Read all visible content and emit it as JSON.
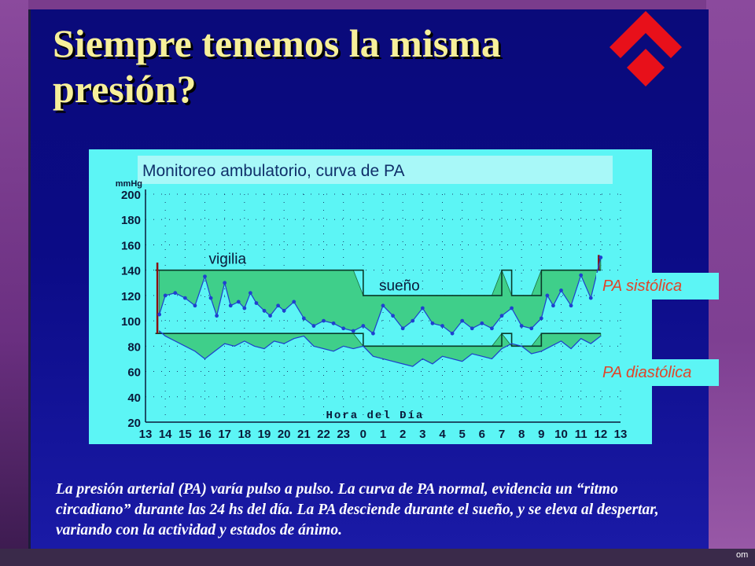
{
  "slide": {
    "title": "Siempre tenemos la misma presión?",
    "body": "La presión arterial (PA) varía pulso a pulso. La curva de PA normal, evidencia un “ritmo circadiano” durante las 24 hs del día. La PA desciende durante el sueño, y se eleva al despertar, variando con la actividad y estados de ánimo.",
    "corner_text": "om",
    "colors": {
      "slide_bg": "#0b0b86",
      "title": "#f7f09a",
      "chart_bg": "#5cf5f5",
      "band": "#3fcf8a",
      "series": "#2040d0",
      "tag_text": "#e0452a",
      "logo": "#e8101a"
    },
    "logo_icon": "red-diamond-chevron-logo"
  },
  "chart_data": {
    "type": "line",
    "title": "Monitoreo ambulatorio, curva de PA",
    "ylabel": "mmHg",
    "xlabel": "Hora del Día",
    "ylim": [
      20,
      200
    ],
    "yticks": [
      20,
      40,
      60,
      80,
      100,
      120,
      140,
      160,
      180,
      200
    ],
    "xticks": [
      "13",
      "14",
      "15",
      "16",
      "17",
      "18",
      "19",
      "20",
      "21",
      "22",
      "23",
      "0",
      "1",
      "2",
      "3",
      "4",
      "5",
      "6",
      "7",
      "8",
      "9",
      "10",
      "11",
      "12",
      "13"
    ],
    "annotations": {
      "wake": "vigilia",
      "sleep": "sueño"
    },
    "labels": {
      "systolic": "PA sistólica",
      "diastolic": "PA diastólica"
    },
    "grid": true,
    "limits": {
      "systolic": [
        [
          13.5,
          140
        ],
        [
          24,
          140
        ],
        [
          24,
          120
        ],
        [
          31,
          120
        ],
        [
          31,
          140
        ],
        [
          31.5,
          140
        ],
        [
          31.5,
          120
        ],
        [
          33,
          120
        ],
        [
          33,
          140
        ],
        [
          36,
          140
        ]
      ],
      "diastolic": [
        [
          13.5,
          90
        ],
        [
          24,
          90
        ],
        [
          24,
          80
        ],
        [
          31,
          80
        ],
        [
          31,
          90
        ],
        [
          31.5,
          90
        ],
        [
          31.5,
          80
        ],
        [
          33,
          80
        ],
        [
          33,
          90
        ],
        [
          36,
          90
        ]
      ]
    },
    "series": [
      {
        "values": [
          [
            13.7,
            105
          ],
          [
            14,
            120
          ],
          [
            14.5,
            122
          ],
          [
            15,
            118
          ],
          [
            15.5,
            112
          ],
          [
            16,
            135
          ],
          [
            16.3,
            118
          ],
          [
            16.6,
            104
          ],
          [
            17,
            130
          ],
          [
            17.3,
            112
          ],
          [
            17.7,
            115
          ],
          [
            18,
            110
          ],
          [
            18.3,
            122
          ],
          [
            18.6,
            114
          ],
          [
            19,
            108
          ],
          [
            19.3,
            104
          ],
          [
            19.7,
            112
          ],
          [
            20,
            108
          ],
          [
            20.5,
            115
          ],
          [
            21,
            102
          ],
          [
            21.5,
            96
          ],
          [
            22,
            100
          ],
          [
            22.5,
            98
          ],
          [
            23,
            94
          ],
          [
            23.5,
            92
          ],
          [
            24,
            96
          ],
          [
            24.5,
            90
          ],
          [
            25,
            112
          ],
          [
            25.5,
            104
          ],
          [
            26,
            94
          ],
          [
            26.5,
            100
          ],
          [
            27,
            110
          ],
          [
            27.5,
            98
          ],
          [
            28,
            96
          ],
          [
            28.5,
            90
          ],
          [
            29,
            100
          ],
          [
            29.5,
            94
          ],
          [
            30,
            98
          ],
          [
            30.5,
            94
          ],
          [
            31,
            104
          ],
          [
            31.5,
            110
          ],
          [
            32,
            96
          ],
          [
            32.5,
            94
          ],
          [
            33,
            102
          ],
          [
            33.3,
            120
          ],
          [
            33.6,
            112
          ],
          [
            34,
            124
          ],
          [
            34.5,
            112
          ],
          [
            35,
            136
          ],
          [
            35.5,
            118
          ],
          [
            36,
            150
          ]
        ]
      },
      {
        "values": [
          [
            13.7,
            92
          ],
          [
            14,
            88
          ],
          [
            14.5,
            84
          ],
          [
            15,
            80
          ],
          [
            15.5,
            76
          ],
          [
            16,
            70
          ],
          [
            16.5,
            76
          ],
          [
            17,
            82
          ],
          [
            17.5,
            80
          ],
          [
            18,
            84
          ],
          [
            18.5,
            80
          ],
          [
            19,
            78
          ],
          [
            19.5,
            84
          ],
          [
            20,
            82
          ],
          [
            20.5,
            86
          ],
          [
            21,
            88
          ],
          [
            21.5,
            80
          ],
          [
            22,
            78
          ],
          [
            22.5,
            76
          ],
          [
            23,
            80
          ],
          [
            23.5,
            78
          ],
          [
            24,
            80
          ],
          [
            24.5,
            72
          ],
          [
            25,
            70
          ],
          [
            25.5,
            68
          ],
          [
            26,
            66
          ],
          [
            26.5,
            64
          ],
          [
            27,
            70
          ],
          [
            27.5,
            66
          ],
          [
            28,
            72
          ],
          [
            28.5,
            70
          ],
          [
            29,
            68
          ],
          [
            29.5,
            74
          ],
          [
            30,
            72
          ],
          [
            30.5,
            70
          ],
          [
            31,
            78
          ],
          [
            31.5,
            82
          ],
          [
            32,
            80
          ],
          [
            32.5,
            74
          ],
          [
            33,
            76
          ],
          [
            33.5,
            80
          ],
          [
            34,
            84
          ],
          [
            34.5,
            78
          ],
          [
            35,
            86
          ],
          [
            35.5,
            82
          ],
          [
            36,
            88
          ]
        ]
      }
    ]
  }
}
